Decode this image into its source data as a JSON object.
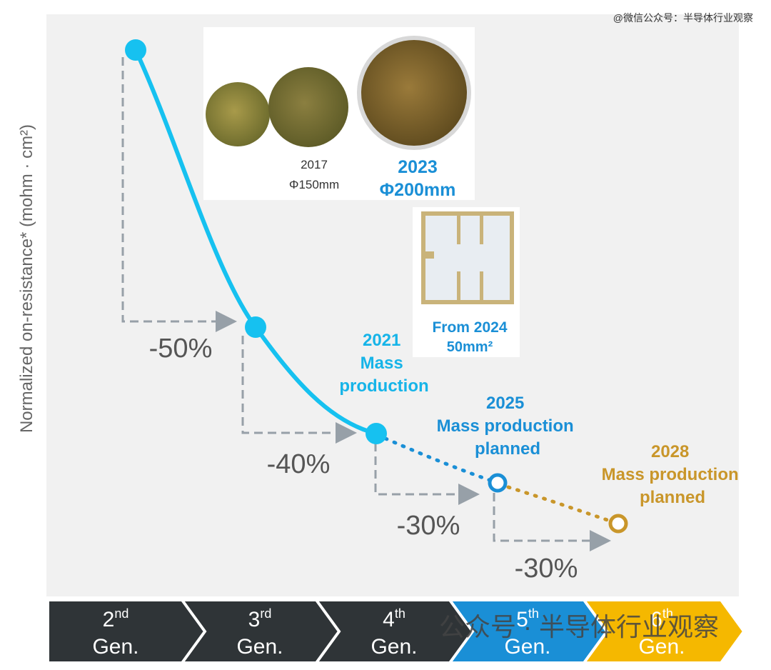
{
  "watermark_top": "@微信公众号：半导体行业观察",
  "y_axis_label": "Normalized on-resistance* (mohm · cm²)",
  "wafers": {
    "small_year": "2017",
    "small_size": "Φ150mm",
    "large_year": "2023",
    "large_size": "Φ200mm"
  },
  "chip": {
    "year": "From 2024",
    "area": "50mm²"
  },
  "annotations": [
    {
      "lines": [
        "2021",
        "Mass",
        "production"
      ]
    },
    {
      "lines": [
        "2025",
        "Mass production",
        "planned"
      ]
    },
    {
      "lines": [
        "2028",
        "Mass production",
        "planned"
      ]
    }
  ],
  "steps": [
    "-50%",
    "-40%",
    "-30%",
    "-30%"
  ],
  "generations": [
    {
      "num": "2",
      "sup": "nd",
      "word": "Gen."
    },
    {
      "num": "3",
      "sup": "rd",
      "word": "Gen."
    },
    {
      "num": "4",
      "sup": "th",
      "word": "Gen."
    },
    {
      "num": "5",
      "sup": "th",
      "word": "Gen."
    },
    {
      "num": "6",
      "sup": "th",
      "word": "Gen."
    }
  ],
  "watermark_bottom": "公众号 · 半导体行业观察"
}
